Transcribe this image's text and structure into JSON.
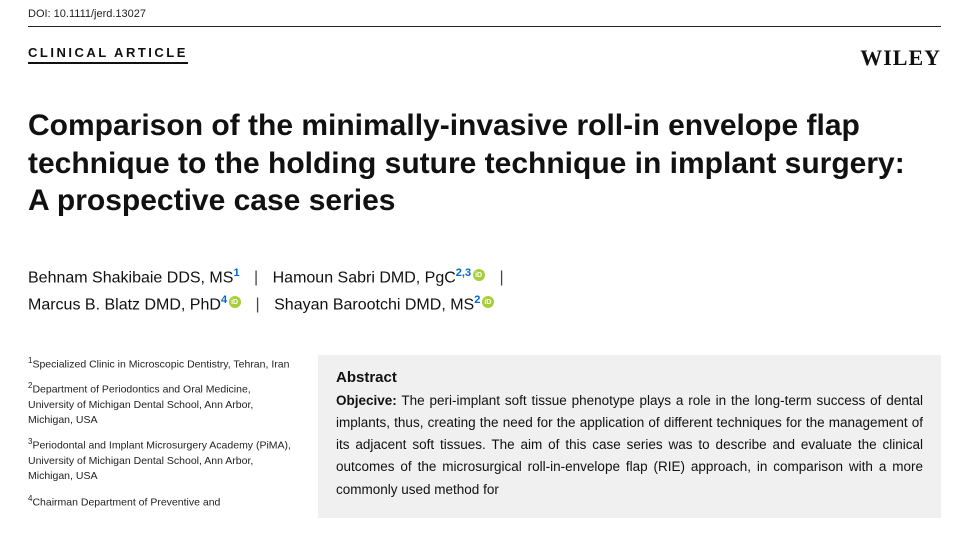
{
  "doi": "DOI: 10.1111/jerd.13027",
  "articleType": "CLINICAL ARTICLE",
  "publisher": "WILEY",
  "title": "Comparison of the minimally-invasive roll-in envelope flap technique to the holding suture technique in implant surgery: A prospective case series",
  "authors": {
    "a1_name": "Behnam Shakibaie DDS, MS",
    "a1_aff": "1",
    "a2_name": "Hamoun Sabri DMD, PgC",
    "a2_aff": "2,3",
    "a3_name": "Marcus B. Blatz DMD, PhD",
    "a3_aff": "4",
    "a4_name": "Shayan Barootchi DMD, MS",
    "a4_aff": "2"
  },
  "affiliations": {
    "f1": "Specialized Clinic in Microscopic Dentistry, Tehran, Iran",
    "f2": "Department of Periodontics and Oral Medicine, University of Michigan Dental School, Ann Arbor, Michigan, USA",
    "f3": "Periodontal and Implant Microsurgery Academy (PiMA), University of Michigan Dental School, Ann Arbor, Michigan, USA",
    "f4": "Chairman Department of Preventive and"
  },
  "abstract": {
    "heading": "Abstract",
    "label_objective": "Objecive:",
    "text_objective": " The peri-implant soft tissue phenotype plays a role in the long-term success of dental implants, thus, creating the need for the application of different techniques for the management of its adjacent soft tissues. The aim of this case series was to describe and evaluate the clinical outcomes of the microsurgical roll-in-envelope flap (RIE) approach, in comparison with a more commonly used method for"
  },
  "colors": {
    "sup_link": "#0066cc",
    "orcid": "#a6ce39",
    "abstract_bg": "#f0f0f0"
  }
}
